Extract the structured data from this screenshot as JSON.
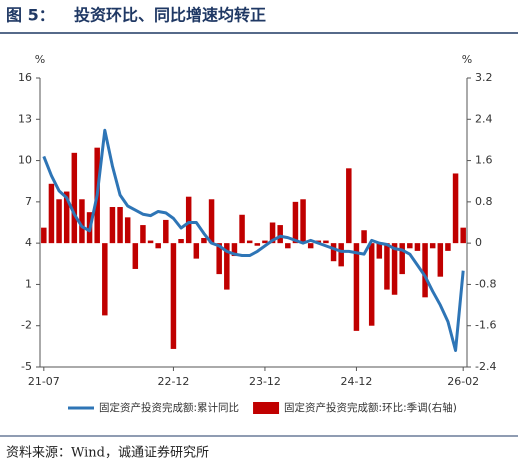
{
  "chart_data": {
    "type": "bar-line",
    "figure_label": "图 5：",
    "title": "投资环比、同比增速均转正",
    "source": "资料来源：Wind，诚通证券研究所",
    "y_label": "%",
    "y2_label": "%",
    "categories": [
      "21-07",
      null,
      null,
      null,
      null,
      null,
      null,
      null,
      null,
      null,
      null,
      null,
      null,
      null,
      null,
      null,
      null,
      "22-12",
      null,
      null,
      null,
      null,
      null,
      null,
      null,
      null,
      null,
      null,
      null,
      "23-12",
      null,
      null,
      null,
      null,
      null,
      null,
      null,
      null,
      null,
      null,
      null,
      "24-12",
      null,
      null,
      null,
      null,
      null,
      null,
      null,
      null,
      null,
      null,
      null,
      null,
      null,
      "26-02"
    ],
    "ylim": [
      -5,
      16
    ],
    "yticks": [
      -5,
      -2,
      1,
      4,
      7,
      10,
      13,
      16
    ],
    "y2lim": [
      -2.4,
      3.2
    ],
    "y2ticks": [
      -2.4,
      -1.6,
      -0.8,
      0,
      0.8,
      1.6,
      2.4,
      3.2
    ],
    "series": [
      {
        "name": "固定资产投资完成额:累计同比",
        "type": "line",
        "color": "#2e75b6",
        "values": [
          10.3,
          8.9,
          7.8,
          7.3,
          6.1,
          5.2,
          4.9,
          7.5,
          12.2,
          9.6,
          7.5,
          6.7,
          6.4,
          6.1,
          6.0,
          6.3,
          6.2,
          5.8,
          5.1,
          5.5,
          5.5,
          4.7,
          4.0,
          3.8,
          3.4,
          3.2,
          3.1,
          3.1,
          3.4,
          3.8,
          4.2,
          4.5,
          4.4,
          4.2,
          4.0,
          4.2,
          4.0,
          3.8,
          3.6,
          3.4,
          3.4,
          3.3,
          3.2,
          4.2,
          4.0,
          3.9,
          3.6,
          3.5,
          3.2,
          2.4,
          1.6,
          0.5,
          -0.5,
          -1.7,
          -3.8,
          2.0
        ]
      },
      {
        "name": "固定资产投资完成额:环比:季调(右轴)",
        "type": "bar",
        "axis": "y2",
        "color": "#c00000",
        "values": [
          0.3,
          1.15,
          0.85,
          1.0,
          1.75,
          0.85,
          0.6,
          1.85,
          -1.4,
          0.7,
          0.7,
          0.5,
          -0.5,
          0.35,
          0.05,
          -0.1,
          0.45,
          -2.05,
          0.08,
          0.9,
          -0.3,
          0.1,
          0.85,
          -0.6,
          -0.9,
          -0.25,
          0.55,
          0.05,
          -0.05,
          0.05,
          0.4,
          0.35,
          -0.1,
          0.8,
          0.85,
          -0.1,
          0.05,
          0.05,
          -0.35,
          -0.45,
          1.45,
          -1.7,
          0.25,
          -1.6,
          -0.3,
          -0.9,
          -1.0,
          -0.6,
          -0.1,
          -0.15,
          -1.05,
          -0.1,
          -0.65,
          -0.15,
          1.35,
          0.3
        ]
      }
    ]
  }
}
